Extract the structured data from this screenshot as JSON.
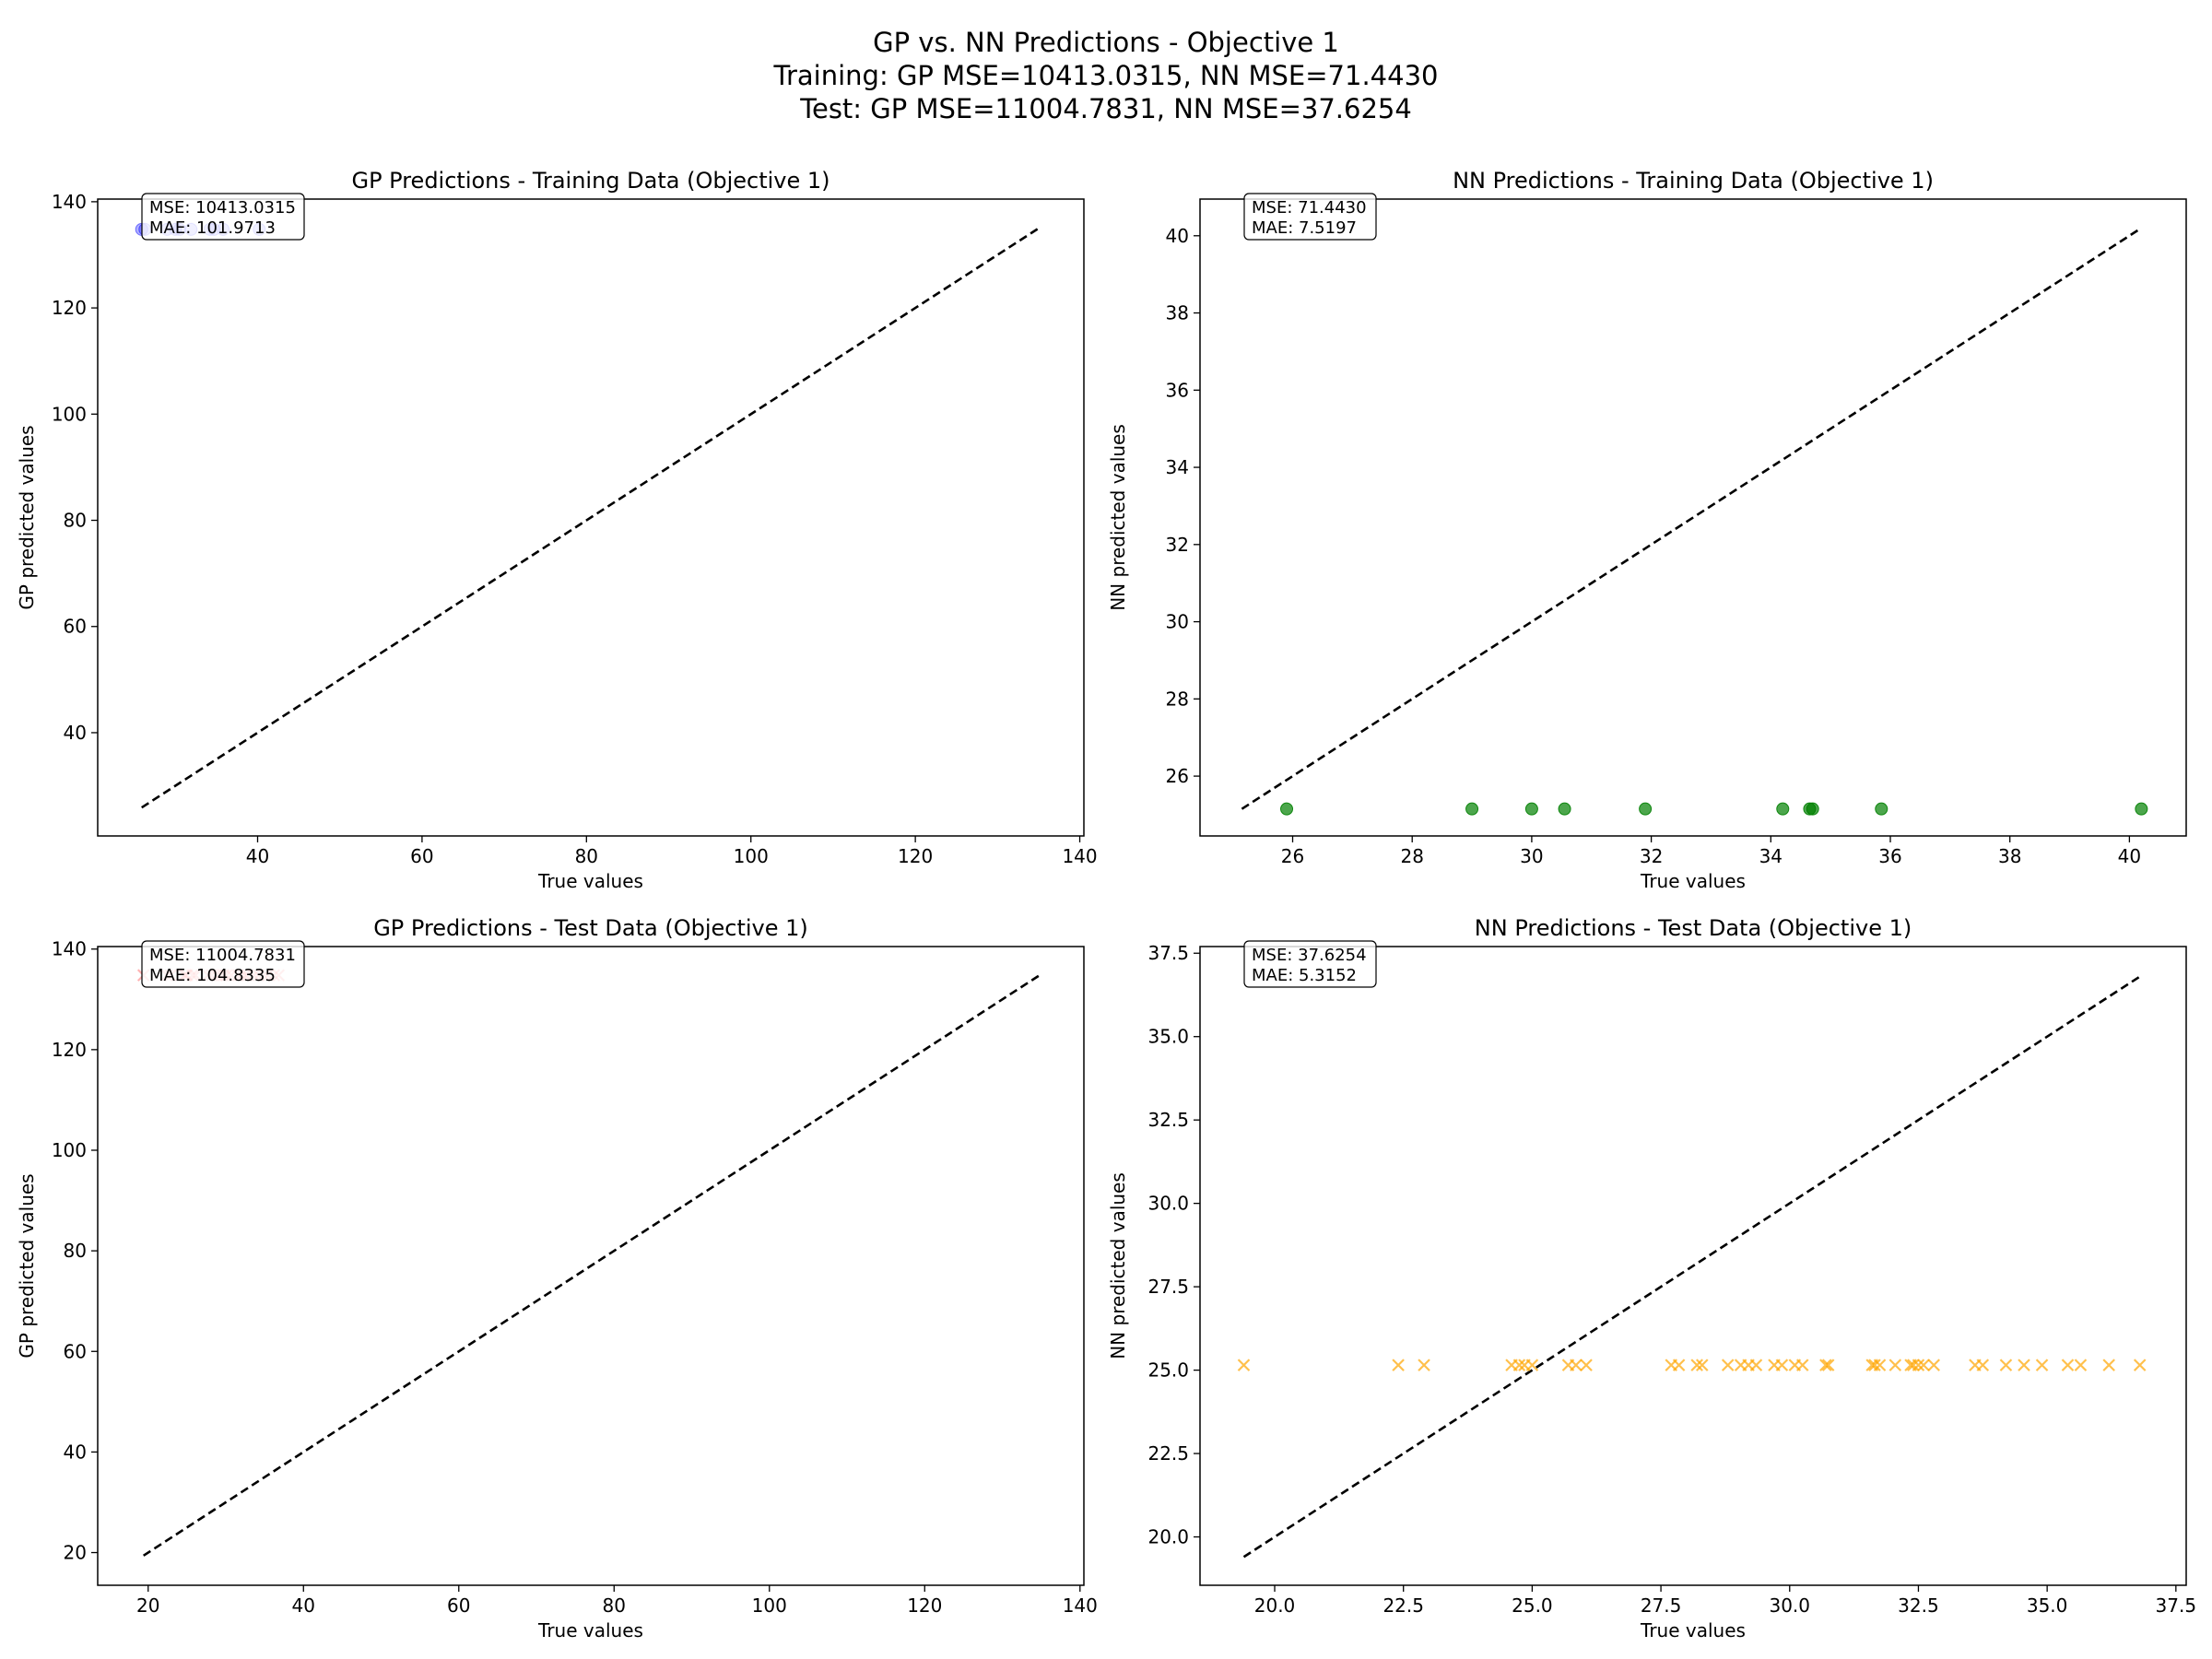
{
  "suptitle": {
    "line1": "GP vs. NN Predictions - Objective 1",
    "line2": "Training: GP MSE=10413.0315, NN MSE=71.4430",
    "line3": "Test: GP MSE=11004.7831, NN MSE=37.6254"
  },
  "chart_data": [
    {
      "type": "scatter",
      "title": "GP Predictions - Training Data (Objective 1)",
      "xlabel": "True values",
      "ylabel": "GP predicted values",
      "xlim": [
        20.55,
        140.5
      ],
      "ylim": [
        20.55,
        140.5
      ],
      "xticks": [
        40,
        60,
        80,
        100,
        120,
        140
      ],
      "yticks": [
        40,
        60,
        80,
        100,
        120,
        140
      ],
      "xtick_labels": [
        "40",
        "60",
        "80",
        "100",
        "120",
        "140"
      ],
      "ytick_labels": [
        "40",
        "60",
        "80",
        "100",
        "120",
        "140"
      ],
      "marker": "o",
      "color": "#0000ff",
      "alpha": 0.3,
      "points_x": [
        25.9,
        26.3,
        29.0,
        30.0,
        30.5,
        31.9,
        34.2,
        34.7,
        35.8,
        40.2
      ],
      "points_y": [
        134.8,
        134.8,
        134.8,
        134.8,
        134.8,
        134.8,
        134.8,
        134.8,
        134.8,
        134.8
      ],
      "diagonal": [
        25.9,
        134.9
      ],
      "stats": [
        "MSE: 10413.0315",
        "MAE: 101.9713"
      ]
    },
    {
      "type": "scatter",
      "title": "NN Predictions - Training Data (Objective 1)",
      "xlabel": "True values",
      "ylabel": "NN predicted values",
      "xlim": [
        24.45,
        40.95
      ],
      "ylim": [
        24.45,
        40.95
      ],
      "xticks": [
        26,
        28,
        30,
        32,
        34,
        36,
        38,
        40
      ],
      "yticks": [
        26,
        28,
        30,
        32,
        34,
        36,
        38,
        40
      ],
      "xtick_labels": [
        "26",
        "28",
        "30",
        "32",
        "34",
        "36",
        "38",
        "40"
      ],
      "ytick_labels": [
        "26",
        "28",
        "30",
        "32",
        "34",
        "36",
        "38",
        "40"
      ],
      "marker": "o",
      "color": "#008000",
      "alpha": 0.7,
      "points_x": [
        25.9,
        29.0,
        30.0,
        30.55,
        31.9,
        34.2,
        34.65,
        34.7,
        35.85,
        40.2
      ],
      "points_y": [
        25.15,
        25.15,
        25.15,
        25.15,
        25.15,
        25.15,
        25.15,
        25.15,
        25.15,
        25.15
      ],
      "diagonal": [
        25.15,
        40.2
      ],
      "stats": [
        "MSE: 71.4430",
        "MAE: 7.5197"
      ]
    },
    {
      "type": "scatter",
      "title": "GP Predictions - Test Data (Objective 1)",
      "xlabel": "True values",
      "ylabel": "GP predicted values",
      "xlim": [
        13.5,
        140.5
      ],
      "ylim": [
        13.5,
        140.5
      ],
      "xticks": [
        20,
        40,
        60,
        80,
        100,
        120,
        140
      ],
      "yticks": [
        20,
        40,
        60,
        80,
        100,
        120,
        140
      ],
      "xtick_labels": [
        "20",
        "40",
        "60",
        "80",
        "100",
        "120",
        "140"
      ],
      "ytick_labels": [
        "20",
        "40",
        "60",
        "80",
        "100",
        "120",
        "140"
      ],
      "marker": "x",
      "color": "#ff0000",
      "alpha": 0.3,
      "points_x": [
        19.4,
        22.4,
        22.9,
        24.6,
        24.8,
        25.0,
        25.7,
        26.1,
        27.7,
        28.2,
        28.8,
        29.2,
        29.7,
        30.1,
        30.7,
        31.6,
        32.0,
        32.4,
        32.7,
        33.6,
        34.2,
        34.9,
        35.4,
        36.2,
        36.8
      ],
      "points_y": [
        134.8,
        134.8,
        134.8,
        134.8,
        134.8,
        134.8,
        134.8,
        134.8,
        134.8,
        134.8,
        134.8,
        134.8,
        134.8,
        134.8,
        134.8,
        134.8,
        134.8,
        134.8,
        134.8,
        134.8,
        134.8,
        134.8,
        134.8,
        134.8,
        134.8
      ],
      "diagonal": [
        19.4,
        134.9
      ],
      "stats": [
        "MSE: 11004.7831",
        "MAE: 104.8335"
      ]
    },
    {
      "type": "scatter",
      "title": "NN Predictions - Test Data (Objective 1)",
      "xlabel": "True values",
      "ylabel": "NN predicted values",
      "xlim": [
        18.55,
        37.7
      ],
      "ylim": [
        18.55,
        37.7
      ],
      "xticks": [
        20.0,
        22.5,
        25.0,
        27.5,
        30.0,
        32.5,
        35.0,
        37.5
      ],
      "yticks": [
        20.0,
        22.5,
        25.0,
        27.5,
        30.0,
        32.5,
        35.0,
        37.5
      ],
      "xtick_labels": [
        "20.0",
        "22.5",
        "25.0",
        "27.5",
        "30.0",
        "32.5",
        "35.0",
        "37.5"
      ],
      "ytick_labels": [
        "20.0",
        "22.5",
        "25.0",
        "27.5",
        "30.0",
        "32.5",
        "35.0",
        "37.5"
      ],
      "marker": "x",
      "color": "#ffa500",
      "alpha": 0.7,
      "points_x": [
        19.4,
        22.4,
        22.9,
        24.6,
        24.75,
        24.85,
        25.0,
        25.7,
        25.85,
        26.05,
        27.7,
        27.85,
        28.2,
        28.3,
        28.8,
        29.05,
        29.2,
        29.35,
        29.7,
        29.85,
        30.1,
        30.25,
        30.7,
        30.75,
        31.6,
        31.65,
        31.75,
        32.05,
        32.35,
        32.4,
        32.5,
        32.6,
        32.8,
        33.6,
        33.75,
        34.2,
        34.55,
        34.9,
        35.4,
        35.65,
        36.2,
        36.8
      ],
      "points_y": [
        25.15,
        25.15,
        25.15,
        25.15,
        25.15,
        25.15,
        25.15,
        25.15,
        25.15,
        25.15,
        25.15,
        25.15,
        25.15,
        25.15,
        25.15,
        25.15,
        25.15,
        25.15,
        25.15,
        25.15,
        25.15,
        25.15,
        25.15,
        25.15,
        25.15,
        25.15,
        25.15,
        25.15,
        25.15,
        25.15,
        25.15,
        25.15,
        25.15,
        25.15,
        25.15,
        25.15,
        25.15,
        25.15,
        25.15,
        25.15,
        25.15,
        25.15
      ],
      "diagonal": [
        19.4,
        36.8
      ],
      "stats": [
        "MSE: 37.6254",
        "MAE: 5.3152"
      ]
    }
  ]
}
